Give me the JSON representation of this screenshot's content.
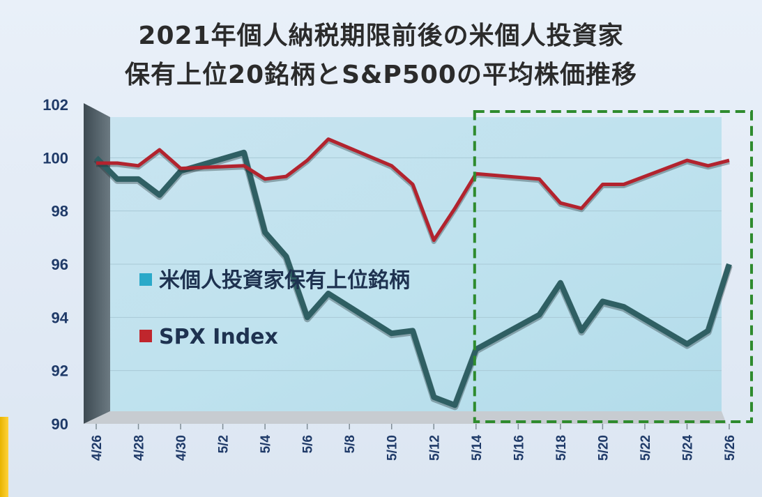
{
  "chart_data": {
    "type": "line",
    "title_line1": "2021年個人納税期限前後の米個人投資家",
    "title_line2": "保有上位20銘柄とS&P500の平均株価推移",
    "ylim": [
      90,
      102
    ],
    "yticks": [
      "102",
      "100",
      "98",
      "96",
      "94",
      "92",
      "90"
    ],
    "x_labels": [
      "4/26",
      "4/28",
      "4/30",
      "5/2",
      "5/4",
      "5/6",
      "5/8",
      "5/10",
      "5/12",
      "5/14",
      "5/16",
      "5/18",
      "5/20",
      "5/22",
      "5/24",
      "5/26"
    ],
    "grid": true,
    "legend_position": "center-left",
    "highlight_box": {
      "from": "5/14",
      "to": "5/26",
      "style": "dashed",
      "color": "#2e8b2e"
    },
    "series": [
      {
        "name": "米個人投資家保有上位銘柄",
        "color": "#2f5f63",
        "legend_color": "#2aa9c9",
        "points": [
          [
            "4/26",
            100.0
          ],
          [
            "4/27",
            99.2
          ],
          [
            "4/28",
            99.2
          ],
          [
            "4/29",
            98.6
          ],
          [
            "4/30",
            99.5
          ],
          [
            "5/3",
            100.2
          ],
          [
            "5/4",
            97.2
          ],
          [
            "5/5",
            96.3
          ],
          [
            "5/6",
            94.0
          ],
          [
            "5/7",
            94.9
          ],
          [
            "5/10",
            93.4
          ],
          [
            "5/11",
            93.5
          ],
          [
            "5/12",
            91.0
          ],
          [
            "5/13",
            90.7
          ],
          [
            "5/14",
            92.8
          ],
          [
            "5/17",
            94.1
          ],
          [
            "5/18",
            95.3
          ],
          [
            "5/19",
            93.5
          ],
          [
            "5/20",
            94.6
          ],
          [
            "5/21",
            94.4
          ],
          [
            "5/24",
            93.0
          ],
          [
            "5/25",
            93.5
          ],
          [
            "5/26",
            96.0
          ]
        ]
      },
      {
        "name": "SPX Index",
        "color": "#b2232e",
        "legend_color": "#c0262d",
        "points": [
          [
            "4/26",
            99.8
          ],
          [
            "4/27",
            99.8
          ],
          [
            "4/28",
            99.7
          ],
          [
            "4/29",
            100.3
          ],
          [
            "4/30",
            99.6
          ],
          [
            "5/3",
            99.7
          ],
          [
            "5/4",
            99.2
          ],
          [
            "5/5",
            99.3
          ],
          [
            "5/6",
            99.9
          ],
          [
            "5/7",
            100.7
          ],
          [
            "5/10",
            99.7
          ],
          [
            "5/11",
            99.0
          ],
          [
            "5/12",
            96.9
          ],
          [
            "5/13",
            98.1
          ],
          [
            "5/14",
            99.4
          ],
          [
            "5/17",
            99.2
          ],
          [
            "5/18",
            98.3
          ],
          [
            "5/19",
            98.1
          ],
          [
            "5/20",
            99.0
          ],
          [
            "5/21",
            99.0
          ],
          [
            "5/24",
            99.9
          ],
          [
            "5/25",
            99.7
          ],
          [
            "5/26",
            99.9
          ]
        ]
      }
    ]
  }
}
